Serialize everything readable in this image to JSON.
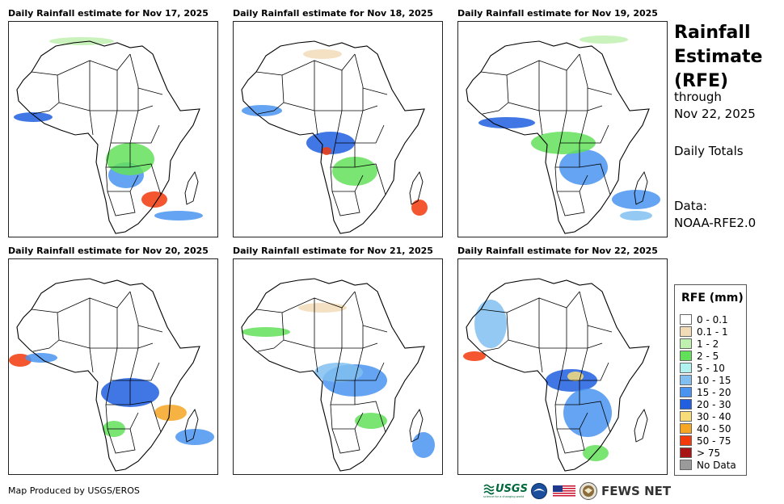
{
  "panels": [
    {
      "title": "Daily Rainfall estimate for Nov 17, 2025"
    },
    {
      "title": "Daily Rainfall estimate for Nov 18, 2025"
    },
    {
      "title": "Daily Rainfall estimate for Nov 19, 2025"
    },
    {
      "title": "Daily Rainfall estimate for Nov 20, 2025"
    },
    {
      "title": "Daily Rainfall estimate for Nov 21, 2025"
    },
    {
      "title": "Daily Rainfall estimate for Nov 22, 2025"
    }
  ],
  "sidebar": {
    "title_line1": "Rainfall",
    "title_line2": "Estimate",
    "title_line3": "(RFE)",
    "through": "through",
    "through_date": "Nov 22, 2025",
    "totals": "Daily Totals",
    "data_label": "Data:",
    "data_source": "NOAA-RFE2.0"
  },
  "legend": {
    "title": "RFE (mm)",
    "items": [
      {
        "label": "0 - 0.1",
        "color": "#ffffff"
      },
      {
        "label": "0.1 - 1",
        "color": "#f2dcb8"
      },
      {
        "label": "1 - 2",
        "color": "#bff0b0"
      },
      {
        "label": "2 - 5",
        "color": "#63e05a"
      },
      {
        "label": "5 - 10",
        "color": "#b0f2f0"
      },
      {
        "label": "10 - 15",
        "color": "#80bff0"
      },
      {
        "label": "15 - 20",
        "color": "#4a94f0"
      },
      {
        "label": "20 - 30",
        "color": "#1f5fe0"
      },
      {
        "label": "30 - 40",
        "color": "#f7dc7a"
      },
      {
        "label": "40 - 50",
        "color": "#f5a623"
      },
      {
        "label": "50 - 75",
        "color": "#f23a0a"
      },
      {
        "label": "> 75",
        "color": "#a81414"
      },
      {
        "label": "No Data",
        "color": "#9a9a9a"
      }
    ]
  },
  "footer": {
    "credit": "Map Produced by USGS/EROS",
    "usgs_label": "USGS",
    "usgs_tagline": "science for a changing world",
    "fewsnet_label": "FEWS NET"
  }
}
